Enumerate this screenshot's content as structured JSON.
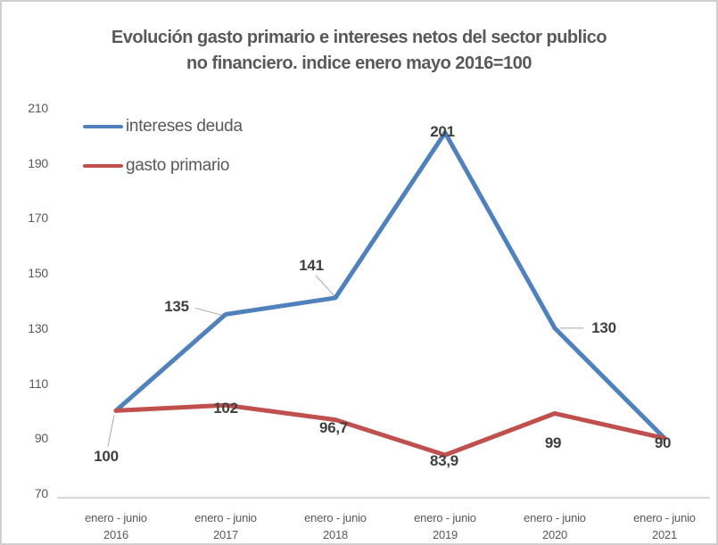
{
  "title": {
    "line1": "Evolución gasto primario e intereses netos del sector publico",
    "line2": "no financiero. indice enero mayo 2016=100"
  },
  "legend": [
    {
      "label": "intereses deuda",
      "color": "#4F81BD"
    },
    {
      "label": "gasto primario",
      "color": "#C0504D"
    }
  ],
  "colors": {
    "blue_series": "#4F81BD",
    "red_series": "#C0504D",
    "axis_line": "#BFBFBF",
    "axis_text": "#595959",
    "data_label_text": "#3F3F3F",
    "leader_line": "#A6A6A6",
    "frame_border": "#D0CECE"
  },
  "chart_data": {
    "type": "line",
    "title": "Evolución gasto primario e intereses netos del sector publico no financiero. indice enero mayo 2016=100",
    "grid": false,
    "legend_position": "inside-top-left",
    "ylim": [
      70,
      210
    ],
    "y_ticks": [
      210,
      190,
      170,
      150,
      130,
      110,
      90,
      70
    ],
    "x_labels": [
      {
        "period": "enero - junio",
        "year": "2016"
      },
      {
        "period": "enero - junio",
        "year": "2017"
      },
      {
        "period": "enero - junio",
        "year": "2018"
      },
      {
        "period": "enero - junio",
        "year": "2019"
      },
      {
        "period": "enero - junio",
        "year": "2020"
      },
      {
        "period": "enero - junio",
        "year": "2021"
      }
    ],
    "series": [
      {
        "name": "intereses deuda",
        "color": "#4F81BD",
        "values": [
          100,
          135,
          141,
          201,
          130,
          90
        ],
        "labels": [
          null,
          "135",
          "141",
          "201",
          "130",
          "90"
        ]
      },
      {
        "name": "gasto primario",
        "color": "#C0504D",
        "values": [
          100,
          102,
          96.7,
          83.9,
          99,
          90
        ],
        "labels": [
          "100",
          "102",
          "96,7",
          "83,9",
          "99",
          null
        ]
      }
    ]
  }
}
